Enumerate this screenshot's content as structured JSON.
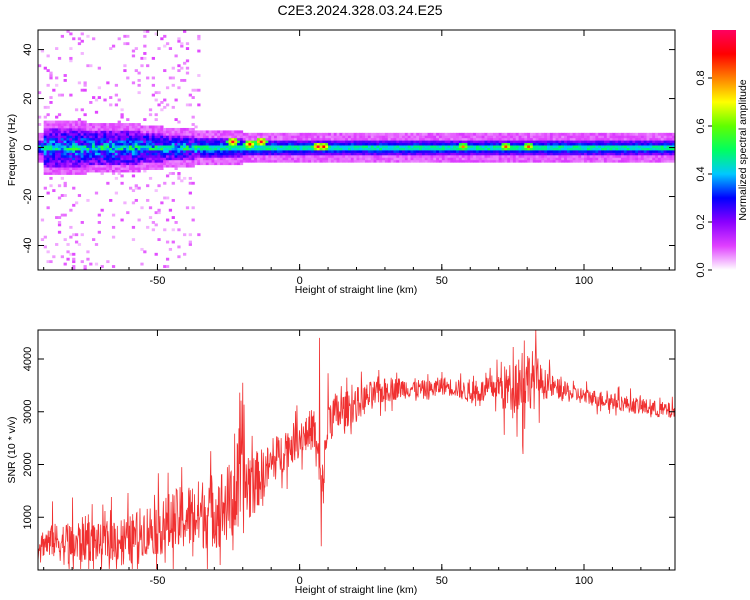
{
  "figure_title": "C2E3.2024.328.03.24.E25",
  "chart_data": [
    {
      "type": "heatmap",
      "title": "C2E3.2024.328.03.24.E25",
      "xlabel": "Height of straight line (km)",
      "ylabel": "Frequency (Hz)",
      "xlim": [
        -92,
        132
      ],
      "ylim": [
        -50,
        48
      ],
      "x_ticks": [
        -50,
        0,
        50,
        100
      ],
      "x_tick_labels": [
        "-50",
        "0",
        "50",
        "100"
      ],
      "y_ticks": [
        40,
        20,
        0,
        -20,
        -40
      ],
      "y_tick_labels": [
        "40",
        "20",
        "0",
        "-20",
        "-40"
      ],
      "colorbar": {
        "label": "Normalized spectral amplitude",
        "range": [
          0,
          1
        ],
        "ticks": [
          0.0,
          0.2,
          0.4,
          0.6,
          0.8
        ],
        "tick_labels": [
          "0.0",
          "0.2",
          "0.4",
          "0.6",
          "0.8"
        ],
        "colormap": [
          "#ffffff",
          "#e040ff",
          "#8a00ff",
          "#0000ff",
          "#00c8ff",
          "#00ff60",
          "#60ff00",
          "#ffff00",
          "#ff8000",
          "#ff0000",
          "#ff0060"
        ]
      },
      "band_center_hz": 0,
      "band_halfwidth_hz": [
        {
          "x": -90,
          "w": 8
        },
        {
          "x": -60,
          "w": 7
        },
        {
          "x": -45,
          "w": 5
        },
        {
          "x": -30,
          "w": 4
        },
        {
          "x": -20,
          "w": 3.5
        },
        {
          "x": 0,
          "w": 3
        },
        {
          "x": 50,
          "w": 3
        },
        {
          "x": 100,
          "w": 3
        },
        {
          "x": 132,
          "w": 3
        }
      ],
      "peaks": [
        {
          "x": -24,
          "y": 2,
          "v": 0.95
        },
        {
          "x": -18,
          "y": 1,
          "v": 0.9
        },
        {
          "x": -14,
          "y": 2,
          "v": 0.95
        },
        {
          "x": 6,
          "y": 0,
          "v": 0.95
        },
        {
          "x": 8,
          "y": 0,
          "v": 0.9
        },
        {
          "x": 57,
          "y": 0,
          "v": 0.8
        },
        {
          "x": 72,
          "y": 0,
          "v": 0.85
        },
        {
          "x": 80,
          "y": 0,
          "v": 0.85
        }
      ],
      "grid": false
    },
    {
      "type": "line",
      "xlabel": "Height of straight line (km)",
      "ylabel": "SNR (10 * v/v)",
      "xlim": [
        -92,
        132
      ],
      "ylim": [
        0,
        4550
      ],
      "x_ticks": [
        -50,
        0,
        50,
        100
      ],
      "x_tick_labels": [
        "-50",
        "0",
        "50",
        "100"
      ],
      "y_ticks": [
        1000,
        2000,
        3000,
        4000
      ],
      "y_tick_labels": [
        "1000",
        "2000",
        "3000",
        "4000"
      ],
      "color": "#f03030",
      "series": [
        {
          "x": [
            -92,
            -85,
            -80,
            -75,
            -70,
            -65,
            -60,
            -55,
            -50,
            -45,
            -40,
            -35,
            -30,
            -25,
            -22,
            -20,
            -15,
            -10,
            -5,
            0,
            5,
            8,
            10,
            15,
            20,
            25,
            30,
            35,
            40,
            45,
            50,
            55,
            60,
            65,
            70,
            72,
            75,
            78,
            80,
            83,
            85,
            90,
            95,
            100,
            105,
            110,
            115,
            120,
            125,
            132
          ],
          "y": [
            500,
            550,
            450,
            600,
            500,
            600,
            550,
            750,
            800,
            900,
            1000,
            1050,
            1150,
            1250,
            1500,
            1600,
            1700,
            2000,
            2300,
            2500,
            2700,
            1500,
            2900,
            3000,
            3150,
            3300,
            3400,
            3450,
            3450,
            3400,
            3500,
            3450,
            3350,
            3400,
            3500,
            3400,
            3550,
            3600,
            3650,
            3600,
            3550,
            3450,
            3350,
            3300,
            3250,
            3200,
            3150,
            3100,
            3050,
            3000
          ],
          "noise": [
            300,
            450,
            600,
            550,
            450,
            550,
            600,
            600,
            650,
            750,
            800,
            850,
            900,
            950,
            1200,
            1200,
            700,
            500,
            500,
            450,
            500,
            700,
            600,
            450,
            400,
            350,
            300,
            260,
            240,
            230,
            220,
            220,
            250,
            280,
            350,
            600,
            500,
            900,
            700,
            700,
            400,
            250,
            220,
            200,
            200,
            200,
            200,
            200,
            200,
            200
          ],
          "spikes": [
            {
              "x": 7,
              "y": 4400
            },
            {
              "x": 7.6,
              "y": 450
            },
            {
              "x": 79,
              "y": 4350
            },
            {
              "x": 78.5,
              "y": 2200
            },
            {
              "x": 83,
              "y": 4550
            },
            {
              "x": -20,
              "y": 3550
            },
            {
              "x": -73,
              "y": 1250
            },
            {
              "x": -87,
              "y": 1300
            }
          ]
        }
      ],
      "grid": false
    }
  ]
}
